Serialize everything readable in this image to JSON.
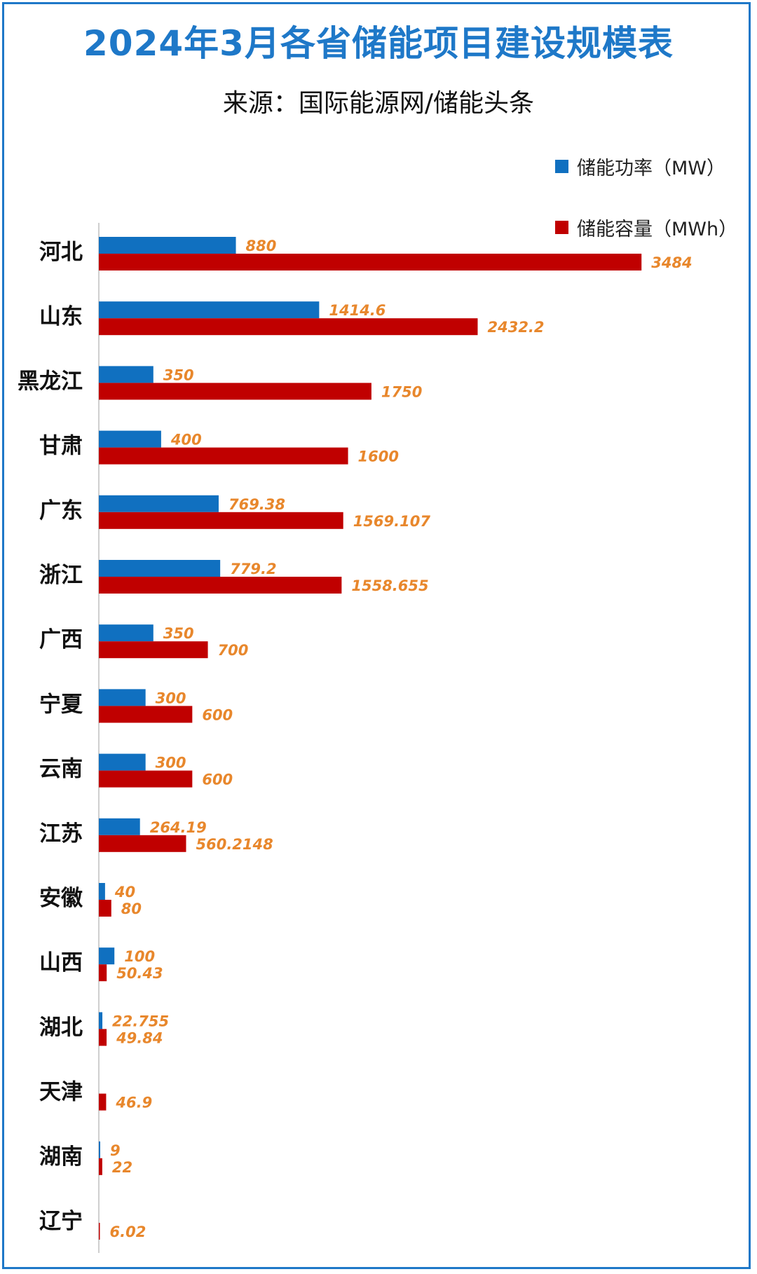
{
  "title": "2024年3月各省储能项目建设规模表",
  "subtitle": "来源：国际能源网/储能头条",
  "colors": {
    "title": "#1e78c8",
    "power": "#1070c0",
    "capacity": "#c00000",
    "value_label": "#e8872c",
    "axis": "#bfbfbf",
    "category_text": "#111111"
  },
  "legend": [
    {
      "label": "储能功率（MW）",
      "color": "#1070c0"
    },
    {
      "label": "储能容量（MWh）",
      "color": "#c00000"
    }
  ],
  "chart_data": {
    "type": "bar",
    "orientation": "horizontal",
    "categories": [
      "河北",
      "山东",
      "黑龙江",
      "甘肃",
      "广东",
      "浙江",
      "广西",
      "宁夏",
      "云南",
      "江苏",
      "安徽",
      "山西",
      "湖北",
      "天津",
      "湖南",
      "辽宁"
    ],
    "series": [
      {
        "name": "储能功率（MW）",
        "values": [
          880,
          1414.6,
          350,
          400,
          769.38,
          779.2,
          350,
          300,
          300,
          264.19,
          40,
          100,
          22.755,
          null,
          9,
          null
        ],
        "labels": [
          "880",
          "1414.6",
          "350",
          "400",
          "769.38",
          "779.2",
          "350",
          "300",
          "300",
          "264.19",
          "40",
          "100",
          "22.755",
          "",
          "9",
          ""
        ]
      },
      {
        "name": "储能容量（MWh）",
        "values": [
          3484,
          2432.2,
          1750,
          1600,
          1569.107,
          1558.655,
          700,
          600,
          600,
          560.2148,
          80,
          50.43,
          49.84,
          46.9,
          22,
          6.02
        ],
        "labels": [
          "3484",
          "2432.2",
          "1750",
          "1600",
          "1569.107",
          "1558.655",
          "700",
          "600",
          "600",
          "560.2148",
          "80",
          "50.43",
          "49.84",
          "46.9",
          "22",
          "6.02"
        ]
      }
    ],
    "xlim": [
      0,
      3600
    ],
    "legend_position": "top-right",
    "grid": false
  }
}
